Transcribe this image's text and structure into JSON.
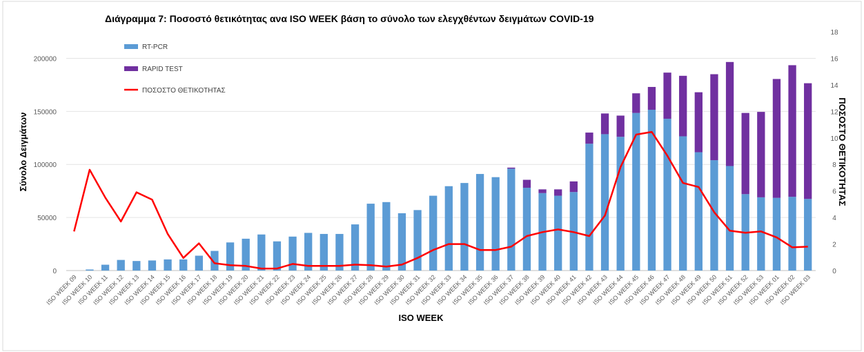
{
  "chart_data": {
    "type": "bar",
    "title": "Διάγραμμα 7: Ποσοστό θετικότητας ανα ISO WEEK  βάση το σύνολο των ελεγχθέντων δειγμάτων COVID-19",
    "xlabel": "ISO WEEK",
    "ylabel": "Σύνολο Δειγμάτων",
    "y2label": "ΠΟΣΟΣΤΟ ΘΕΤΙΚΟΤΗΤΑΣ",
    "ylim": [
      0,
      225000
    ],
    "y2lim": [
      0,
      18
    ],
    "yticks": [
      "0",
      "50000",
      "100000",
      "150000",
      "200000"
    ],
    "y2ticks": [
      "0",
      "2",
      "4",
      "6",
      "8",
      "10",
      "12",
      "14",
      "16",
      "18"
    ],
    "legend_position": "top-left",
    "stacked": true,
    "categories": [
      "ISO WEEK 09",
      "ISO WEEK 10",
      "ISO WEEK 11",
      "ISO WEEK 12",
      "ISO WEEK 13",
      "ISO WEEK 14",
      "ISO WEEK 15",
      "ISO WEEK 16",
      "ISO WEEK 17",
      "ISO WEEK 18",
      "ISO WEEK 19",
      "ISO WEEK 20",
      "ISO WEEK 21",
      "ISO WEEK 22",
      "ISO WEEK 23",
      "ISO WEEK 24",
      "ISO WEEK 25",
      "ISO WEEK 26",
      "ISO WEEK 27",
      "ISO WEEK 28",
      "ISO WEEK 29",
      "ISO WEEK 30",
      "ISO WEEK 31",
      "ISO WEEK 32",
      "ISO WEEK 33",
      "ISO WEEK 34",
      "ISO WEEK 35",
      "ISO WEEK 36",
      "ISO WEEK 37",
      "ISO WEEK 38",
      "ISO WEEK 39",
      "ISO WEEK 40",
      "ISO WEEK 41",
      "ISO WEEK 42",
      "ISO WEEK 43",
      "ISO WEEK 44",
      "ISO WEEK 45",
      "ISO WEEK 46",
      "ISO WEEK 47",
      "ISO WEEK 48",
      "ISO WEEK 49",
      "ISO WEEK 50",
      "ISO WEEK 51",
      "ISO WEEK 52",
      "ISO WEEK 53",
      "ISO WEEK 01",
      "ISO WEEK 02",
      "ISO WEEK 03"
    ],
    "series": [
      {
        "name": "RT-PCR",
        "kind": "bar",
        "axis": "left",
        "color": "#5b9bd5",
        "values": [
          0,
          1000,
          5500,
          10000,
          9000,
          9500,
          10500,
          10500,
          14000,
          18500,
          26500,
          30000,
          34000,
          27500,
          32000,
          35500,
          34500,
          34500,
          43500,
          63000,
          64500,
          54000,
          57000,
          70500,
          79500,
          82500,
          91000,
          88000,
          96000,
          78000,
          73000,
          70500,
          74000,
          119500,
          128500,
          126000,
          148500,
          151500,
          143000,
          126500,
          111500,
          104000,
          98500,
          72000,
          69000,
          68500,
          69500,
          67500
        ]
      },
      {
        "name": "RAPID TEST",
        "kind": "bar",
        "axis": "left",
        "color": "#7030a0",
        "values": [
          0,
          0,
          0,
          0,
          0,
          0,
          0,
          0,
          0,
          0,
          0,
          0,
          0,
          0,
          0,
          0,
          0,
          0,
          0,
          0,
          0,
          0,
          0,
          0,
          0,
          0,
          0,
          0,
          1000,
          7500,
          3500,
          6000,
          10000,
          10500,
          19500,
          20000,
          18500,
          21500,
          43500,
          57000,
          56500,
          81000,
          98000,
          76500,
          80500,
          112000,
          124000,
          109000
        ]
      },
      {
        "name": "ΠΟΣΟΣΤΟ ΘΕΤΙΚΟΤΗΤΑΣ",
        "kind": "line",
        "axis": "right",
        "color": "#ff0000",
        "values": [
          2.95,
          7.6,
          5.5,
          3.7,
          5.9,
          5.35,
          2.75,
          0.95,
          2.05,
          0.55,
          0.4,
          0.35,
          0.15,
          0.15,
          0.5,
          0.35,
          0.35,
          0.35,
          0.45,
          0.4,
          0.3,
          0.45,
          0.95,
          1.55,
          2.0,
          2.0,
          1.55,
          1.55,
          1.8,
          2.6,
          2.9,
          3.1,
          2.9,
          2.6,
          4.15,
          7.8,
          10.25,
          10.45,
          8.65,
          6.6,
          6.3,
          4.4,
          3.0,
          2.85,
          2.95,
          2.5,
          1.75,
          1.8
        ]
      }
    ]
  }
}
